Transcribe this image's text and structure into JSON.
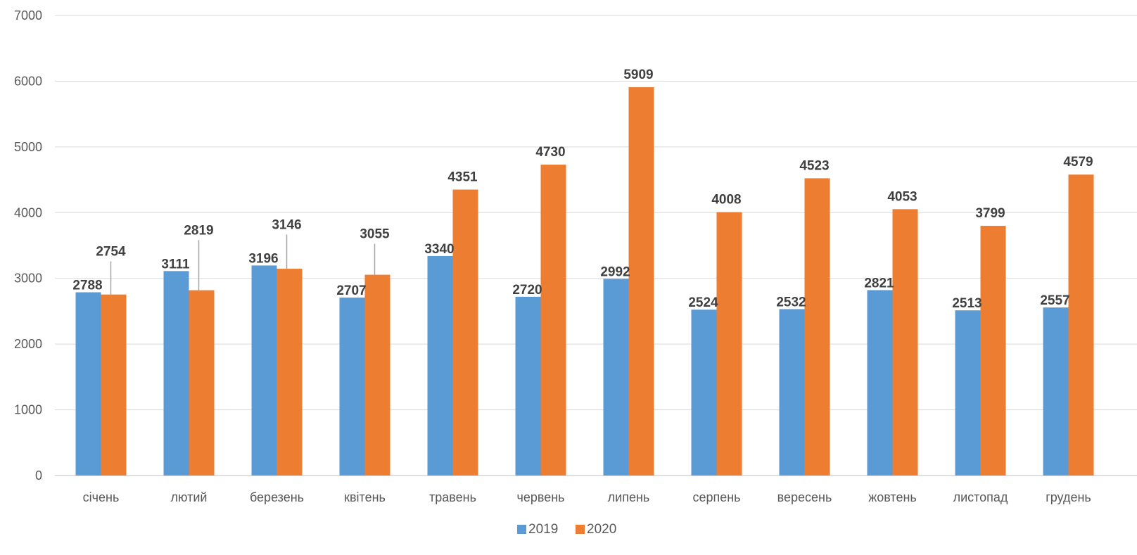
{
  "chart_data": {
    "type": "bar",
    "categories": [
      "січень",
      "лютий",
      "березень",
      "квітень",
      "травень",
      "червень",
      "липень",
      "серпень",
      "вересень",
      "жовтень",
      "листопад",
      "грудень"
    ],
    "series": [
      {
        "name": "2019",
        "color": "#5b9bd5",
        "values": [
          2788,
          3111,
          3196,
          2707,
          3340,
          2720,
          2992,
          2524,
          2532,
          2821,
          2513,
          2557
        ]
      },
      {
        "name": "2020",
        "color": "#ed7d31",
        "values": [
          2754,
          2819,
          3146,
          3055,
          4351,
          4730,
          5909,
          4008,
          4523,
          4053,
          3799,
          4579
        ]
      }
    ],
    "ylim": [
      0,
      7000
    ],
    "yticks": [
      0,
      1000,
      2000,
      3000,
      4000,
      5000,
      6000,
      7000
    ],
    "grid": true,
    "legend": "bottom-center",
    "data_labels": true
  }
}
